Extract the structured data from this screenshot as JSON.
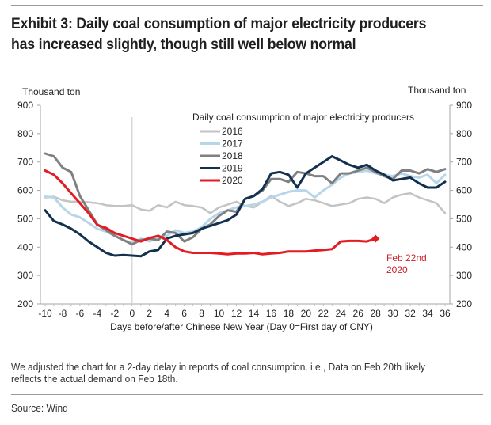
{
  "title": "Exhibit 3: Daily coal consumption of major electricity producers has increased slightly, though still well below normal",
  "footnote": "We adjusted the chart for a 2-day delay in reports of coal consumption. i.e., Data on Feb 20th likely reflects the actual demand on Feb 18th.",
  "source": "Source: Wind",
  "chart_data": {
    "type": "line",
    "title": "Daily coal consumption of major electricity producers",
    "xlabel": "Days before/after Chinese New Year (Day 0=First day of CNY)",
    "ylabel_left": "Thousand ton",
    "ylabel_right": "Thousand ton",
    "xlim": [
      -10,
      36
    ],
    "ylim": [
      200,
      900
    ],
    "xticks": [
      -10,
      -8,
      -6,
      -4,
      -2,
      0,
      2,
      4,
      6,
      8,
      10,
      12,
      14,
      16,
      18,
      20,
      22,
      24,
      26,
      28,
      30,
      32,
      34,
      36
    ],
    "yticks": [
      200,
      300,
      400,
      500,
      600,
      700,
      800,
      900
    ],
    "reference_line_x": 0,
    "legend_position": "top-center",
    "annotation": {
      "x": 28,
      "y": 430,
      "text_line1": "Feb 22nd",
      "text_line2": "2020",
      "color": "#cc2229"
    },
    "series": [
      {
        "name": "2016",
        "color": "#c3c3c3",
        "x": [
          -10,
          -9,
          -8,
          -7,
          -6,
          -5,
          -4,
          -3,
          -2,
          -1,
          0,
          1,
          2,
          3,
          4,
          5,
          6,
          7,
          8,
          9,
          10,
          11,
          12,
          13,
          14,
          15,
          16,
          17,
          18,
          19,
          20,
          21,
          22,
          23,
          24,
          25,
          26,
          27,
          28,
          29,
          30,
          31,
          32,
          33,
          34,
          35,
          36
        ],
        "values": [
          575,
          578,
          565,
          560,
          560,
          558,
          555,
          548,
          545,
          545,
          548,
          533,
          528,
          548,
          540,
          560,
          548,
          545,
          540,
          520,
          540,
          550,
          560,
          545,
          540,
          560,
          580,
          560,
          545,
          555,
          570,
          565,
          555,
          545,
          550,
          555,
          570,
          575,
          570,
          555,
          575,
          585,
          590,
          575,
          565,
          555,
          520
        ]
      },
      {
        "name": "2017",
        "color": "#b8d6ea",
        "x": [
          -10,
          -9,
          -8,
          -7,
          -6,
          -5,
          -4,
          -3,
          -2,
          -1,
          0,
          1,
          2,
          3,
          4,
          5,
          6,
          7,
          8,
          9,
          10,
          11,
          12,
          13,
          14,
          15,
          16,
          17,
          18,
          19,
          20,
          21,
          22,
          23,
          24,
          25,
          26,
          27,
          28,
          29,
          30,
          31,
          32,
          33,
          34,
          35,
          36
        ],
        "values": [
          578,
          575,
          540,
          515,
          505,
          485,
          465,
          455,
          440,
          425,
          415,
          430,
          420,
          435,
          440,
          460,
          450,
          455,
          470,
          500,
          520,
          530,
          540,
          545,
          550,
          560,
          575,
          585,
          595,
          600,
          600,
          575,
          600,
          620,
          645,
          660,
          665,
          670,
          660,
          655,
          650,
          660,
          650,
          645,
          655,
          625,
          655
        ]
      },
      {
        "name": "2018",
        "color": "#808080",
        "x": [
          -10,
          -9,
          -8,
          -7,
          -6,
          -5,
          -4,
          -3,
          -2,
          -1,
          0,
          1,
          2,
          3,
          4,
          5,
          6,
          7,
          8,
          9,
          10,
          11,
          12,
          13,
          14,
          15,
          16,
          17,
          18,
          19,
          20,
          21,
          22,
          23,
          24,
          25,
          26,
          27,
          28,
          29,
          30,
          31,
          32,
          33,
          34,
          35,
          36
        ],
        "values": [
          730,
          720,
          680,
          665,
          580,
          530,
          480,
          460,
          440,
          425,
          410,
          425,
          430,
          425,
          455,
          450,
          420,
          435,
          465,
          480,
          510,
          530,
          525,
          570,
          580,
          600,
          640,
          640,
          630,
          665,
          660,
          650,
          650,
          625,
          660,
          660,
          670,
          680,
          665,
          650,
          640,
          670,
          670,
          660,
          675,
          665,
          675
        ]
      },
      {
        "name": "2019",
        "color": "#12304f",
        "x": [
          -10,
          -9,
          -8,
          -7,
          -6,
          -5,
          -4,
          -3,
          -2,
          -1,
          0,
          1,
          2,
          3,
          4,
          5,
          6,
          7,
          8,
          9,
          10,
          11,
          12,
          13,
          14,
          15,
          16,
          17,
          18,
          19,
          20,
          21,
          22,
          23,
          24,
          25,
          26,
          27,
          28,
          29,
          30,
          31,
          32,
          33,
          34,
          35,
          36
        ],
        "values": [
          530,
          492,
          480,
          465,
          445,
          420,
          400,
          380,
          370,
          372,
          370,
          368,
          385,
          390,
          430,
          440,
          445,
          450,
          465,
          475,
          485,
          495,
          515,
          570,
          580,
          605,
          660,
          665,
          655,
          610,
          660,
          680,
          700,
          720,
          705,
          690,
          680,
          690,
          670,
          655,
          635,
          640,
          645,
          625,
          610,
          610,
          630
        ]
      },
      {
        "name": "2020",
        "color": "#e31c23",
        "x": [
          -10,
          -9,
          -8,
          -7,
          -6,
          -5,
          -4,
          -3,
          -2,
          -1,
          0,
          1,
          2,
          3,
          4,
          5,
          6,
          7,
          8,
          9,
          10,
          11,
          12,
          13,
          14,
          15,
          16,
          17,
          18,
          19,
          20,
          21,
          22,
          23,
          24,
          25,
          26,
          27,
          28
        ],
        "values": [
          670,
          655,
          625,
          590,
          555,
          520,
          478,
          468,
          450,
          440,
          430,
          420,
          432,
          440,
          425,
          400,
          385,
          380,
          380,
          380,
          378,
          375,
          378,
          378,
          380,
          375,
          378,
          380,
          385,
          385,
          385,
          388,
          390,
          393,
          420,
          422,
          422,
          420,
          430
        ]
      }
    ]
  }
}
